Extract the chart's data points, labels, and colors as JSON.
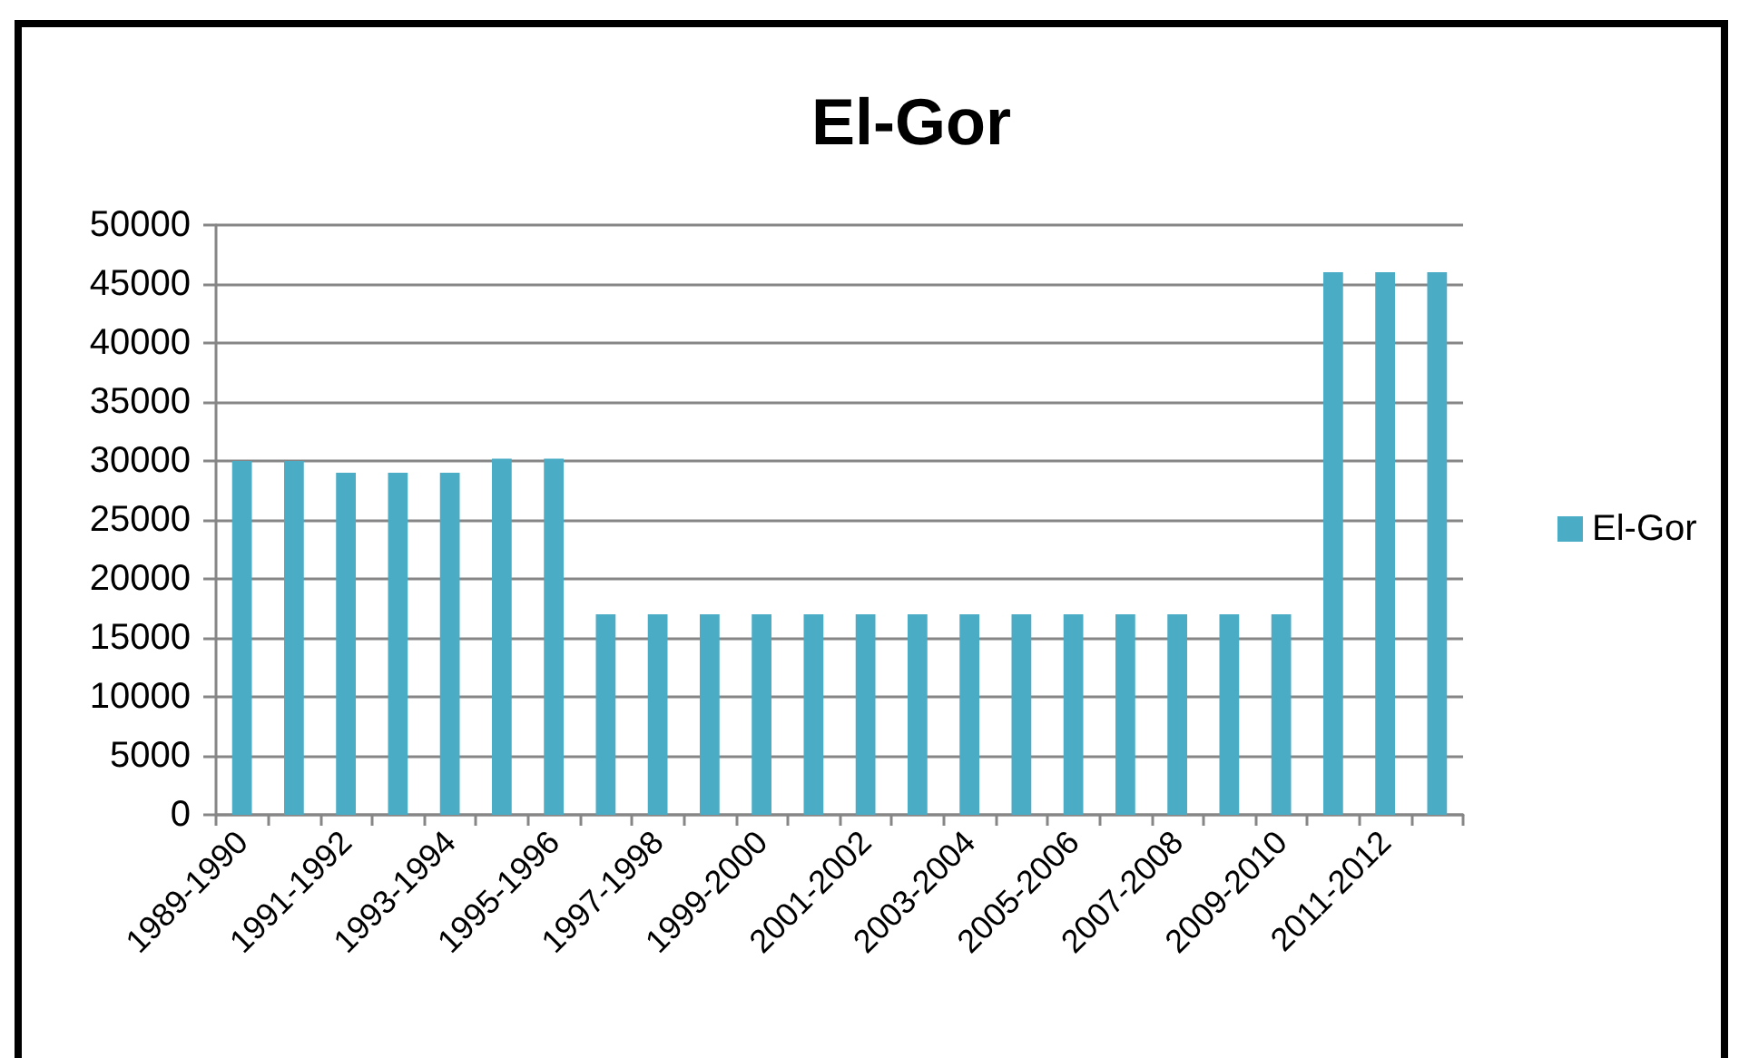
{
  "chart_data": {
    "type": "bar",
    "title": "El-Gor",
    "categories": [
      "1989-1990",
      null,
      "1991-1992",
      null,
      "1993-1994",
      null,
      "1995-1996",
      null,
      "1997-1998",
      null,
      "1999-2000",
      null,
      "2001-2002",
      null,
      "2003-2004",
      null,
      "2005-2006",
      null,
      "2007-2008",
      null,
      "2009-2010",
      null,
      "2011-2012",
      null
    ],
    "series": [
      {
        "name": "El-Gor",
        "color": "#4bacc6",
        "values": [
          30000,
          30000,
          29000,
          29000,
          29000,
          30200,
          30200,
          17000,
          17000,
          17000,
          17000,
          17000,
          17000,
          17000,
          17000,
          17000,
          17000,
          17000,
          17000,
          17000,
          17000,
          46000,
          46000,
          46000
        ]
      }
    ],
    "ylim": [
      0,
      50000
    ],
    "yticks": [
      0,
      5000,
      10000,
      15000,
      20000,
      25000,
      30000,
      35000,
      40000,
      45000,
      50000
    ],
    "grid": "y",
    "legend": "right"
  }
}
